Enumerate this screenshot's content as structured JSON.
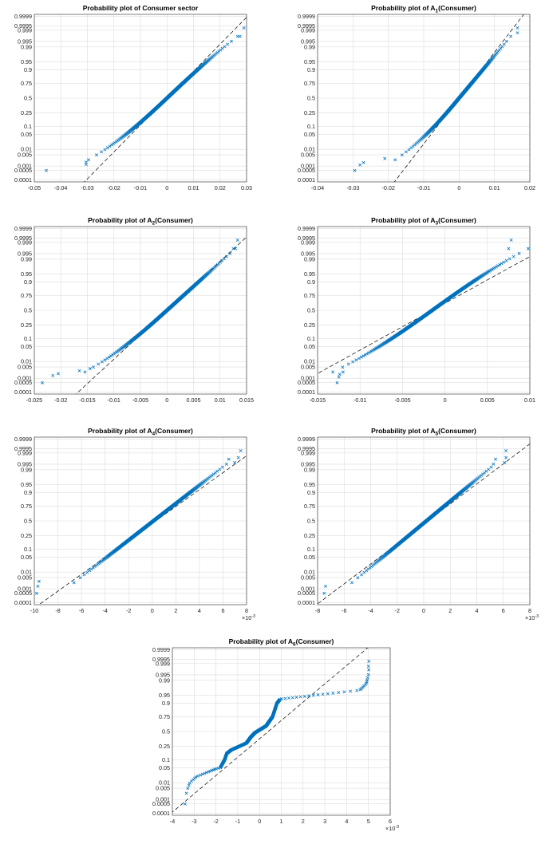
{
  "figure": {
    "background": "#ffffff",
    "marker_color": "#0072BD",
    "reference_line_color": "#000000"
  },
  "chart_data": [
    {
      "type": "scatter",
      "title_parts": [
        "Probability plot of Consumer sector"
      ],
      "xlim": [
        -0.05,
        0.03
      ],
      "xticks": [
        -0.05,
        -0.04,
        -0.03,
        -0.02,
        -0.01,
        0,
        0.01,
        0.02,
        0.03
      ],
      "xtick_labels": [
        "-0.05",
        "-0.04",
        "-0.03",
        "-0.02",
        "-0.01",
        "0",
        "0.01",
        "0.02",
        "0.03"
      ],
      "x_exponent": "",
      "yticks": [
        0.0001,
        0.0005,
        0.001,
        0.005,
        0.01,
        0.05,
        0.1,
        0.25,
        0.5,
        0.75,
        0.9,
        0.95,
        0.99,
        0.995,
        0.999,
        0.9995,
        0.9999
      ],
      "ytick_labels": [
        "0.0001",
        "0.0005",
        "0.001",
        "0.005",
        "0.01",
        "0.05",
        "0.1",
        "0.25",
        "0.5",
        "0.75",
        "0.9",
        "0.95",
        "0.99",
        "0.995",
        "0.999",
        "0.9995",
        "0.9999"
      ],
      "reference_line": {
        "mu": 0.0,
        "sigma": 0.00817
      },
      "shape": {
        "mu": 0.0,
        "sigma": 0.0088,
        "kurt_low": 0.025,
        "kurt_high": 0.01,
        "centre_pow": 1.0
      },
      "tail_points": [
        [
          -0.0455,
          0.0005
        ],
        [
          -0.0305,
          0.0013
        ],
        [
          -0.0305,
          0.0018
        ],
        [
          0.0275,
          0.9975
        ],
        [
          0.029,
          0.9993
        ]
      ]
    },
    {
      "type": "scatter",
      "title_parts": [
        "Probability plot of A",
        "1",
        "(Consumer)"
      ],
      "xlim": [
        -0.04,
        0.02
      ],
      "xticks": [
        -0.04,
        -0.03,
        -0.02,
        -0.01,
        0,
        0.01,
        0.02
      ],
      "xtick_labels": [
        "-0.04",
        "-0.03",
        "-0.02",
        "-0.01",
        "0",
        "0.01",
        "0.02"
      ],
      "x_exponent": "",
      "yticks": [
        0.0001,
        0.0005,
        0.001,
        0.005,
        0.01,
        0.05,
        0.1,
        0.25,
        0.5,
        0.75,
        0.9,
        0.95,
        0.99,
        0.995,
        0.999,
        0.9995,
        0.9999
      ],
      "ytick_labels": [
        "0.0001",
        "0.0005",
        "0.001",
        "0.005",
        "0.01",
        "0.05",
        "0.1",
        "0.25",
        "0.5",
        "0.75",
        "0.9",
        "0.95",
        "0.99",
        "0.995",
        "0.999",
        "0.9995",
        "0.9999"
      ],
      "reference_line": {
        "mu": 0.0,
        "sigma": 0.0048
      },
      "shape": {
        "mu": 0.0,
        "sigma": 0.0052,
        "kurt_low": 0.03,
        "kurt_high": 0.0,
        "centre_pow": 1.0
      },
      "tail_points": [
        [
          -0.0295,
          0.0005
        ],
        [
          -0.028,
          0.0012
        ],
        [
          -0.027,
          0.0017
        ],
        [
          -0.021,
          0.003
        ],
        [
          0.0165,
          0.9993
        ],
        [
          0.0165,
          0.9985
        ]
      ]
    },
    {
      "type": "scatter",
      "title_parts": [
        "Probability plot of A",
        "2",
        "(Consumer)"
      ],
      "xlim": [
        -0.025,
        0.015
      ],
      "xticks": [
        -0.025,
        -0.02,
        -0.015,
        -0.01,
        -0.005,
        0,
        0.005,
        0.01,
        0.015
      ],
      "xtick_labels": [
        "-0.025",
        "-0.02",
        "-0.015",
        "-0.01",
        "-0.005",
        "0",
        "0.005",
        "0.01",
        "0.015"
      ],
      "x_exponent": "",
      "yticks": [
        0.0001,
        0.0005,
        0.001,
        0.005,
        0.01,
        0.05,
        0.1,
        0.25,
        0.5,
        0.75,
        0.9,
        0.95,
        0.99,
        0.995,
        0.999,
        0.9995,
        0.9999
      ],
      "ytick_labels": [
        "0.0001",
        "0.0005",
        "0.001",
        "0.005",
        "0.01",
        "0.05",
        "0.1",
        "0.25",
        "0.5",
        "0.75",
        "0.9",
        "0.95",
        "0.99",
        "0.995",
        "0.999",
        "0.9995",
        "0.9999"
      ],
      "reference_line": {
        "mu": 0.0,
        "sigma": 0.0045
      },
      "shape": {
        "mu": 0.0,
        "sigma": 0.0046,
        "kurt_low": 0.025,
        "kurt_high": 0.0,
        "centre_pow": 1.0
      },
      "tail_points": [
        [
          -0.0235,
          0.0005
        ],
        [
          -0.0215,
          0.0015
        ],
        [
          -0.0205,
          0.002
        ],
        [
          -0.0165,
          0.003
        ],
        [
          -0.0145,
          0.004
        ],
        [
          0.0125,
          0.9975
        ],
        [
          0.0133,
          0.9993
        ]
      ]
    },
    {
      "type": "scatter",
      "title_parts": [
        "Probability plot of A",
        "3",
        "(Consumer)"
      ],
      "xlim": [
        -0.015,
        0.01
      ],
      "xticks": [
        -0.015,
        -0.01,
        -0.005,
        0,
        0.005,
        0.01
      ],
      "xtick_labels": [
        "-0.015",
        "-0.01",
        "-0.005",
        "0",
        "0.005",
        "0.01"
      ],
      "x_exponent": "",
      "yticks": [
        0.0001,
        0.0005,
        0.001,
        0.005,
        0.01,
        0.05,
        0.1,
        0.25,
        0.5,
        0.75,
        0.9,
        0.95,
        0.99,
        0.995,
        0.999,
        0.9995,
        0.9999
      ],
      "ytick_labels": [
        "0.0001",
        "0.0005",
        "0.001",
        "0.005",
        "0.01",
        "0.05",
        "0.1",
        "0.25",
        "0.5",
        "0.75",
        "0.9",
        "0.95",
        "0.99",
        "0.995",
        "0.999",
        "0.9995",
        "0.9999"
      ],
      "reference_line": {
        "mu": -0.0015,
        "sigma": 0.0047
      },
      "shape": {
        "mu": -0.0015,
        "sigma": 0.0036,
        "kurt_low": 0.02,
        "kurt_high": 0.015,
        "centre_pow": 1.0
      },
      "tail_points": [
        [
          -0.0127,
          0.0005
        ],
        [
          -0.0125,
          0.0012
        ],
        [
          -0.0124,
          0.0018
        ],
        [
          -0.012,
          0.0025
        ],
        [
          0.0078,
          0.9993
        ],
        [
          0.0075,
          0.9975
        ]
      ]
    },
    {
      "type": "scatter",
      "title_parts": [
        "Probability plot of A",
        "4",
        "(Consumer)"
      ],
      "xlim": [
        -10,
        8
      ],
      "xticks": [
        -10,
        -8,
        -6,
        -4,
        -2,
        0,
        2,
        4,
        6,
        8
      ],
      "xtick_labels": [
        "-10",
        "-8",
        "-6",
        "-4",
        "-2",
        "0",
        "2",
        "4",
        "6",
        "8"
      ],
      "x_exponent": "-3",
      "yticks": [
        0.0001,
        0.0005,
        0.001,
        0.005,
        0.01,
        0.05,
        0.1,
        0.25,
        0.5,
        0.75,
        0.9,
        0.95,
        0.99,
        0.995,
        0.999,
        0.9995,
        0.9999
      ],
      "ytick_labels": [
        "0.0001",
        "0.0005",
        "0.001",
        "0.005",
        "0.01",
        "0.05",
        "0.1",
        "0.25",
        "0.5",
        "0.75",
        "0.9",
        "0.95",
        "0.99",
        "0.995",
        "0.999",
        "0.9995",
        "0.9999"
      ],
      "reference_line": {
        "mu": 0.3,
        "sigma": 2.6
      },
      "shape": {
        "mu": 0.1,
        "sigma": 2.4,
        "kurt_low": 0.0,
        "kurt_high": 0.0,
        "centre_pow": 1.0,
        "low_clamp": -9.7,
        "high_clamp": 6.3
      },
      "tail_points": [
        [
          -9.8,
          0.0005
        ],
        [
          -9.7,
          0.0015
        ],
        [
          -9.6,
          0.003
        ],
        [
          7.5,
          0.9993
        ],
        [
          7.3,
          0.998
        ],
        [
          7.0,
          0.996
        ]
      ]
    },
    {
      "type": "scatter",
      "title_parts": [
        "Probability plot of A",
        "5",
        "(Consumer)"
      ],
      "xlim": [
        -8,
        8
      ],
      "xticks": [
        -8,
        -6,
        -4,
        -2,
        0,
        2,
        4,
        6,
        8
      ],
      "xtick_labels": [
        "-8",
        "-6",
        "-4",
        "-2",
        "0",
        "2",
        "4",
        "6",
        "8"
      ],
      "x_exponent": "-3",
      "yticks": [
        0.0001,
        0.0005,
        0.001,
        0.005,
        0.01,
        0.05,
        0.1,
        0.25,
        0.5,
        0.75,
        0.9,
        0.95,
        0.99,
        0.995,
        0.999,
        0.9995,
        0.9999
      ],
      "ytick_labels": [
        "0.0001",
        "0.0005",
        "0.001",
        "0.005",
        "0.01",
        "0.05",
        "0.1",
        "0.25",
        "0.5",
        "0.75",
        "0.9",
        "0.95",
        "0.99",
        "0.995",
        "0.999",
        "0.9995",
        "0.9999"
      ],
      "reference_line": {
        "mu": 0.3,
        "sigma": 2.2
      },
      "shape": {
        "mu": 0.2,
        "sigma": 2.0,
        "kurt_low": 0.0,
        "kurt_high": 0.0,
        "centre_pow": 1.0,
        "low_clamp": -7.4,
        "high_clamp": 5.2
      },
      "tail_points": [
        [
          -7.5,
          0.0005
        ],
        [
          -7.4,
          0.0015
        ],
        [
          6.2,
          0.9993
        ],
        [
          6.2,
          0.998
        ],
        [
          6.1,
          0.996
        ]
      ]
    },
    {
      "type": "scatter",
      "title_parts": [
        "Probability plot of A",
        "6",
        "(Consumer)"
      ],
      "xlim": [
        -4,
        6
      ],
      "xticks": [
        -4,
        -3,
        -2,
        -1,
        0,
        1,
        2,
        3,
        4,
        5,
        6
      ],
      "xtick_labels": [
        "-4",
        "-3",
        "-2",
        "-1",
        "0",
        "1",
        "2",
        "3",
        "4",
        "5",
        "6"
      ],
      "x_exponent": "-3",
      "yticks": [
        0.0001,
        0.0005,
        0.001,
        0.005,
        0.01,
        0.05,
        0.1,
        0.25,
        0.5,
        0.75,
        0.9,
        0.95,
        0.99,
        0.995,
        0.999,
        0.9995,
        0.9999
      ],
      "ytick_labels": [
        "0.0001",
        "0.0005",
        "0.001",
        "0.005",
        "0.01",
        "0.05",
        "0.1",
        "0.25",
        "0.5",
        "0.75",
        "0.9",
        "0.95",
        "0.99",
        "0.995",
        "0.999",
        "0.9995",
        "0.9999"
      ],
      "reference_line": {
        "mu": 0.4,
        "sigma": 1.2
      },
      "knots": [
        [
          -3.4,
          0.0005
        ],
        [
          -3.35,
          0.003
        ],
        [
          -3.2,
          0.01
        ],
        [
          -2.9,
          0.02
        ],
        [
          -2.0,
          0.045
        ],
        [
          -1.8,
          0.05
        ],
        [
          -1.6,
          0.1
        ],
        [
          -1.5,
          0.16
        ],
        [
          -1.3,
          0.2
        ],
        [
          -0.6,
          0.3
        ],
        [
          -0.4,
          0.4
        ],
        [
          -0.2,
          0.48
        ],
        [
          0.3,
          0.6
        ],
        [
          0.6,
          0.75
        ],
        [
          0.8,
          0.9
        ],
        [
          0.95,
          0.93
        ],
        [
          4.6,
          0.97
        ],
        [
          4.9,
          0.985
        ],
        [
          5.0,
          0.995
        ],
        [
          5.05,
          0.9993
        ]
      ]
    }
  ]
}
